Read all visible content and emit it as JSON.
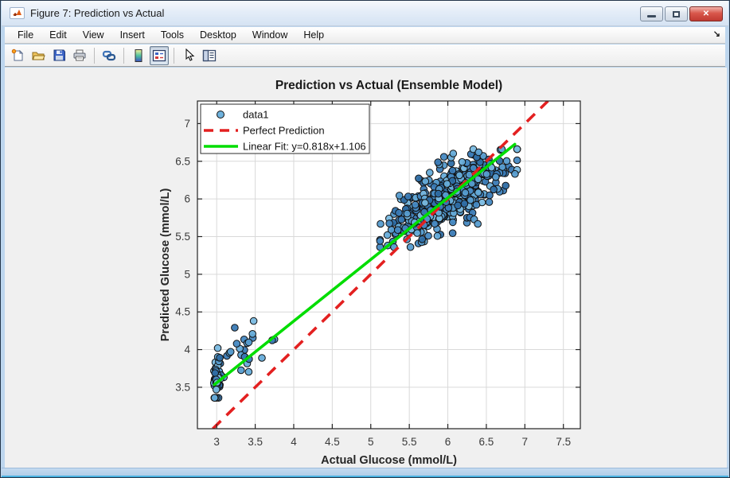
{
  "window": {
    "title": "Figure 7: Prediction vs Actual",
    "controls": [
      {
        "name": "minimize-button"
      },
      {
        "name": "restore-button"
      },
      {
        "name": "close-button"
      }
    ]
  },
  "menu_bar": {
    "items": [
      "File",
      "Edit",
      "View",
      "Insert",
      "Tools",
      "Desktop",
      "Window",
      "Help"
    ],
    "dock_icon": "dock-figure-arrow"
  },
  "toolbar": {
    "buttons": [
      {
        "icon": "new-figure-icon"
      },
      {
        "icon": "open-file-icon"
      },
      {
        "icon": "save-icon"
      },
      {
        "icon": "print-icon"
      },
      {
        "icon": "link-plot-icon"
      },
      {
        "icon": "colorbar-icon"
      },
      {
        "icon": "legend-icon",
        "pressed": true
      },
      {
        "icon": "edit-plot-arrow-icon"
      },
      {
        "icon": "property-editor-icon"
      }
    ]
  },
  "chart_data": {
    "type": "scatter",
    "title": "Prediction vs Actual (Ensemble Model)",
    "xlabel": "Actual Glucose (mmol/L)",
    "ylabel": "Predicted Glucose (mmol/L)",
    "xlim": [
      2.75,
      7.72
    ],
    "ylim": [
      2.95,
      7.3
    ],
    "xticks": [
      3,
      3.5,
      4,
      4.5,
      5,
      5.5,
      6,
      6.5,
      7,
      7.5
    ],
    "yticks": [
      3.5,
      4,
      4.5,
      5,
      5.5,
      6,
      6.5,
      7
    ],
    "grid": true,
    "colors": {
      "marker_fills": [
        "#2e6da4",
        "#3a7ab5",
        "#4689c2",
        "#569ccf",
        "#66acd9",
        "#79b9e0"
      ],
      "marker_edge": "#111111",
      "perfect_line": "#e32020",
      "fit_line": "#00dd00",
      "grid_line": "#d9d9d9",
      "axis": "#232323"
    },
    "legend": {
      "position": "northwest",
      "entries": [
        {
          "label": "data1",
          "type": "marker",
          "color": "#6fb2dd"
        },
        {
          "label": "Perfect Prediction",
          "type": "dashed-line",
          "color": "#e32020"
        },
        {
          "label": "Linear Fit: y=0.818x+1.106",
          "type": "line",
          "color": "#00dd00"
        }
      ]
    },
    "series": [
      {
        "name": "data1",
        "type": "scatter",
        "seed": 7,
        "clusters": [
          {
            "n": 50,
            "cx": 3.01,
            "cy": 3.62,
            "sx": 0.03,
            "sy": 0.165,
            "corr": 0.05,
            "clip": {
              "x": [
                2.96,
                3.14
              ],
              "y": [
                3.36,
                4.02
              ]
            }
          },
          {
            "n": 24,
            "cx": 3.38,
            "cy": 3.98,
            "sx": 0.2,
            "sy": 0.2,
            "corr": 0.45,
            "clip": {
              "x": [
                3.04,
                3.86
              ],
              "y": [
                3.48,
                4.38
              ]
            }
          },
          {
            "n": 540,
            "cx": 6.03,
            "cy": 6.04,
            "sx": 0.36,
            "sy": 0.27,
            "corr": 0.76,
            "clip": {
              "x": [
                5.12,
                6.9
              ],
              "y": [
                5.36,
                6.66
              ]
            }
          }
        ]
      },
      {
        "name": "Perfect Prediction",
        "type": "line",
        "style": "dashed",
        "points": [
          [
            2.95,
            2.95
          ],
          [
            7.3,
            7.3
          ]
        ]
      },
      {
        "name": "Linear Fit",
        "type": "line",
        "style": "solid",
        "equation": {
          "slope": 0.818,
          "intercept": 1.106
        },
        "points": [
          [
            2.97,
            3.535
          ],
          [
            6.87,
            6.726
          ]
        ]
      }
    ]
  }
}
